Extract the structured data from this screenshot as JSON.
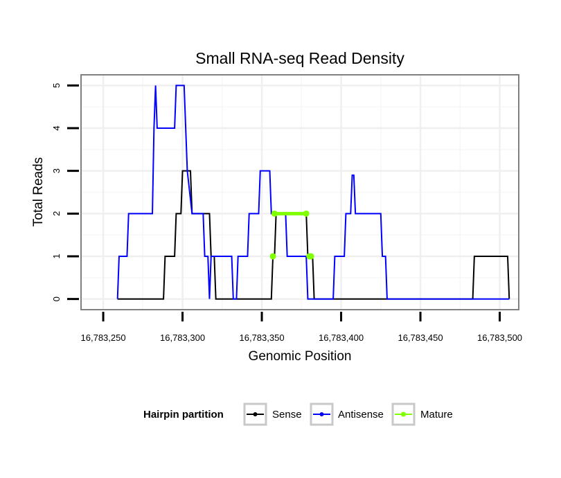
{
  "chart_data": {
    "type": "line",
    "title": "Small RNA-seq Read Density",
    "xlabel": "Genomic Position",
    "ylabel": "Total Reads",
    "xlim": [
      16783236,
      16783512
    ],
    "ylim": [
      -0.25,
      5.25
    ],
    "x_ticks": [
      16783250,
      16783300,
      16783350,
      16783400,
      16783450,
      16783500
    ],
    "x_tick_labels": [
      "16,783,250",
      "16,783,300",
      "16,783,350",
      "16,783,400",
      "16,783,450",
      "16,783,500"
    ],
    "y_ticks": [
      0,
      1,
      2,
      3,
      4,
      5
    ],
    "y_tick_labels": [
      "0",
      "1",
      "2",
      "3",
      "4",
      "5"
    ],
    "grid": true,
    "legend": {
      "title": "Hairpin partition",
      "position": "bottom",
      "entries": [
        {
          "name": "Sense",
          "color": "#000000"
        },
        {
          "name": "Antisense",
          "color": "#0000ff"
        },
        {
          "name": "Mature",
          "color": "#7fff00"
        }
      ]
    },
    "series": [
      {
        "name": "Sense",
        "color": "#000000",
        "x": [
          16783259,
          16783288,
          16783289,
          16783295,
          16783296,
          16783299,
          16783300,
          16783305,
          16783306,
          16783308,
          16783309,
          16783317,
          16783318,
          16783320,
          16783321,
          16783356,
          16783357,
          16783358,
          16783359,
          16783378,
          16783379,
          16783382,
          16783383,
          16783483,
          16783484,
          16783505,
          16783506
        ],
        "y": [
          0,
          0,
          1,
          1,
          2,
          2,
          3,
          3,
          2,
          2,
          2,
          2,
          1,
          1,
          0,
          0,
          1,
          1,
          2,
          2,
          1,
          1,
          0,
          0,
          1,
          1,
          0
        ]
      },
      {
        "name": "Antisense",
        "color": "#0000ff",
        "x": [
          16783259,
          16783260,
          16783265,
          16783266,
          16783281,
          16783282,
          16783283,
          16783284,
          16783295,
          16783296,
          16783301,
          16783302,
          16783303,
          16783306,
          16783313,
          16783314,
          16783316,
          16783317,
          16783318,
          16783331,
          16783332,
          16783334,
          16783335,
          16783341,
          16783342,
          16783348,
          16783349,
          16783355,
          16783356,
          16783365,
          16783366,
          16783378,
          16783379,
          16783395,
          16783396,
          16783402,
          16783403,
          16783406,
          16783407,
          16783408,
          16783409,
          16783425,
          16783426,
          16783428,
          16783429,
          16783505,
          16783506
        ],
        "y": [
          0,
          1,
          1,
          2,
          2,
          4,
          5,
          4,
          4,
          5,
          5,
          4,
          3,
          2,
          2,
          1,
          1,
          0,
          1,
          1,
          0,
          0,
          1,
          1,
          2,
          2,
          3,
          3,
          2,
          2,
          1,
          1,
          0,
          0,
          1,
          1,
          2,
          2,
          2.9,
          2.9,
          2,
          2,
          1,
          1,
          0,
          0,
          0
        ]
      },
      {
        "name": "Mature",
        "color": "#7fff00",
        "segments": [
          {
            "x": [
              16783357
            ],
            "y": [
              1
            ]
          },
          {
            "x": [
              16783358,
              16783378
            ],
            "y": [
              2,
              2
            ]
          },
          {
            "x": [
              16783380,
              16783381
            ],
            "y": [
              1,
              1
            ]
          }
        ]
      }
    ]
  }
}
